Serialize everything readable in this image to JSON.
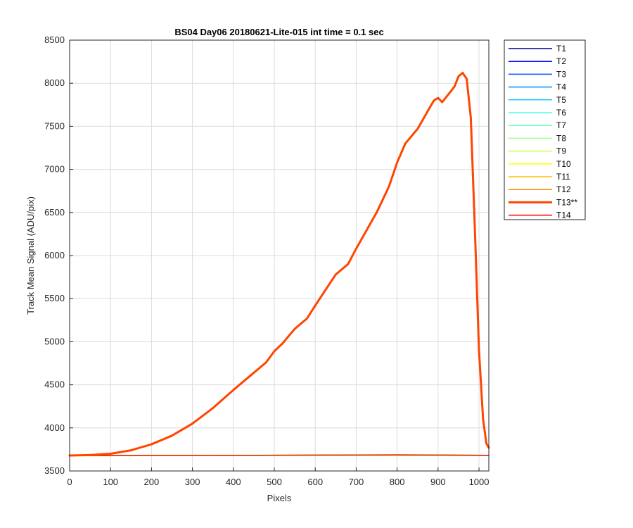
{
  "chart_data": {
    "type": "line",
    "title": "BS04 Day06 20180621-Lite-015 int time = 0.1 sec",
    "xlabel": "Pixels",
    "ylabel": "Track Mean Signal (ADU/pix)",
    "xlim": [
      0,
      1024
    ],
    "ylim": [
      3500,
      8500
    ],
    "xticks": [
      0,
      100,
      200,
      300,
      400,
      500,
      600,
      700,
      800,
      900,
      1000
    ],
    "yticks": [
      3500,
      4000,
      4500,
      5000,
      5500,
      6000,
      6500,
      7000,
      7500,
      8000,
      8500
    ],
    "grid": true,
    "legend_position": "outside-right-top",
    "series": [
      {
        "name": "T1",
        "color": "#00008f",
        "x": [
          0,
          1024
        ],
        "y": [
          3680,
          3680
        ]
      },
      {
        "name": "T2",
        "color": "#0010ff",
        "x": [
          0,
          1024
        ],
        "y": [
          3680,
          3680
        ]
      },
      {
        "name": "T3",
        "color": "#0050ff",
        "x": [
          0,
          1024
        ],
        "y": [
          3680,
          3680
        ]
      },
      {
        "name": "T4",
        "color": "#0090ff",
        "x": [
          0,
          1024
        ],
        "y": [
          3680,
          3680
        ]
      },
      {
        "name": "T5",
        "color": "#10cfff",
        "x": [
          0,
          1024
        ],
        "y": [
          3680,
          3680
        ]
      },
      {
        "name": "T6",
        "color": "#40ffef",
        "x": [
          0,
          1024
        ],
        "y": [
          3680,
          3680
        ]
      },
      {
        "name": "T7",
        "color": "#70ffbf",
        "x": [
          0,
          1024
        ],
        "y": [
          3680,
          3680
        ]
      },
      {
        "name": "T8",
        "color": "#9fff8f",
        "x": [
          0,
          1024
        ],
        "y": [
          3680,
          3680
        ]
      },
      {
        "name": "T9",
        "color": "#cfff50",
        "x": [
          0,
          1024
        ],
        "y": [
          3680,
          3680
        ]
      },
      {
        "name": "T10",
        "color": "#ffff00",
        "x": [
          0,
          200,
          400,
          600,
          800,
          1000,
          1024
        ],
        "y": [
          3675,
          3677,
          3680,
          3684,
          3686,
          3682,
          3680
        ]
      },
      {
        "name": "T11",
        "color": "#ffbf00",
        "x": [
          0,
          200,
          400,
          600,
          800,
          1000,
          1024
        ],
        "y": [
          3676,
          3678,
          3681,
          3685,
          3688,
          3683,
          3681
        ]
      },
      {
        "name": "T12",
        "color": "#ff8f00",
        "x": [
          0,
          200,
          400,
          600,
          800,
          1000,
          1024
        ],
        "y": [
          3677,
          3679,
          3682,
          3686,
          3689,
          3684,
          3682
        ]
      },
      {
        "name": "T13**",
        "color": "#ff4500",
        "highlight": true,
        "x": [
          0,
          50,
          100,
          150,
          200,
          250,
          300,
          350,
          400,
          450,
          480,
          500,
          520,
          550,
          580,
          600,
          650,
          680,
          700,
          750,
          780,
          800,
          820,
          850,
          880,
          890,
          900,
          910,
          920,
          940,
          950,
          960,
          970,
          980,
          990,
          1000,
          1010,
          1018,
          1024
        ],
        "y": [
          3680,
          3685,
          3700,
          3740,
          3810,
          3910,
          4050,
          4230,
          4440,
          4640,
          4760,
          4890,
          4980,
          5150,
          5270,
          5420,
          5780,
          5900,
          6080,
          6500,
          6800,
          7080,
          7300,
          7470,
          7720,
          7800,
          7830,
          7780,
          7840,
          7960,
          8080,
          8120,
          8050,
          7600,
          6300,
          4900,
          4100,
          3820,
          3770
        ]
      },
      {
        "name": "T14",
        "color": "#ff0000",
        "x": [
          0,
          200,
          400,
          600,
          800,
          1000,
          1024
        ],
        "y": [
          3678,
          3680,
          3682,
          3685,
          3687,
          3683,
          3682
        ]
      }
    ]
  }
}
